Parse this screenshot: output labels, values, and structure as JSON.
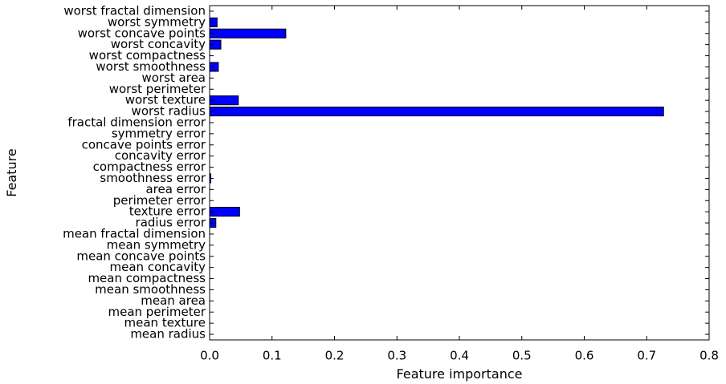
{
  "chart_data": {
    "type": "bar",
    "orientation": "horizontal",
    "title": "",
    "xlabel": "Feature importance",
    "ylabel": "Feature",
    "xlim": [
      0.0,
      0.8
    ],
    "xticks": [
      0.0,
      0.1,
      0.2,
      0.3,
      0.4,
      0.5,
      0.6,
      0.7,
      0.8
    ],
    "xtick_labels": [
      "0.0",
      "0.1",
      "0.2",
      "0.3",
      "0.4",
      "0.5",
      "0.6",
      "0.7",
      "0.8"
    ],
    "grid": false,
    "bar_color": "#0000ff",
    "categories": [
      "mean radius",
      "mean texture",
      "mean perimeter",
      "mean area",
      "mean smoothness",
      "mean compactness",
      "mean concavity",
      "mean concave points",
      "mean symmetry",
      "mean fractal dimension",
      "radius error",
      "texture error",
      "perimeter error",
      "area error",
      "smoothness error",
      "compactness error",
      "concavity error",
      "concave points error",
      "symmetry error",
      "fractal dimension error",
      "worst radius",
      "worst texture",
      "worst perimeter",
      "worst area",
      "worst smoothness",
      "worst compactness",
      "worst concavity",
      "worst concave points",
      "worst symmetry",
      "worst fractal dimension"
    ],
    "values": [
      0.0,
      0.0,
      0.0,
      0.0,
      0.0,
      0.0,
      0.0,
      0.0,
      0.0,
      0.0,
      0.01,
      0.048,
      0.0,
      0.0,
      0.002,
      0.0,
      0.0,
      0.0,
      0.0,
      0.0,
      0.727,
      0.046,
      0.0,
      0.0,
      0.014,
      0.0,
      0.018,
      0.122,
      0.012,
      0.0
    ]
  }
}
